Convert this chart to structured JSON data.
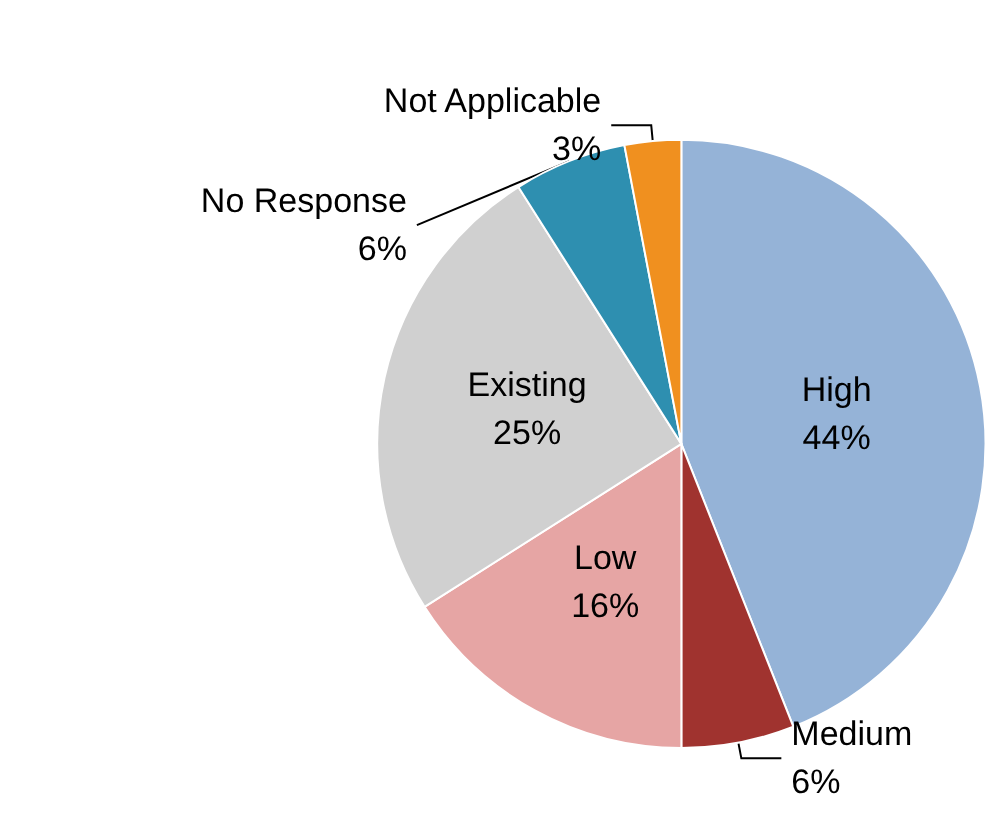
{
  "chart_data": {
    "type": "pie",
    "categories": [
      "High",
      "Medium",
      "Low",
      "Existing",
      "No Response",
      "Not Applicable"
    ],
    "values": [
      44,
      6,
      16,
      25,
      6,
      3
    ],
    "value_labels": [
      "44%",
      "6%",
      "16%",
      "25%",
      "6%",
      "3%"
    ],
    "colors": [
      "#95b3d7",
      "#a0332f",
      "#e6a5a4",
      "#d0d0d0",
      "#2e8fb0",
      "#f0901f"
    ],
    "legend": false
  }
}
